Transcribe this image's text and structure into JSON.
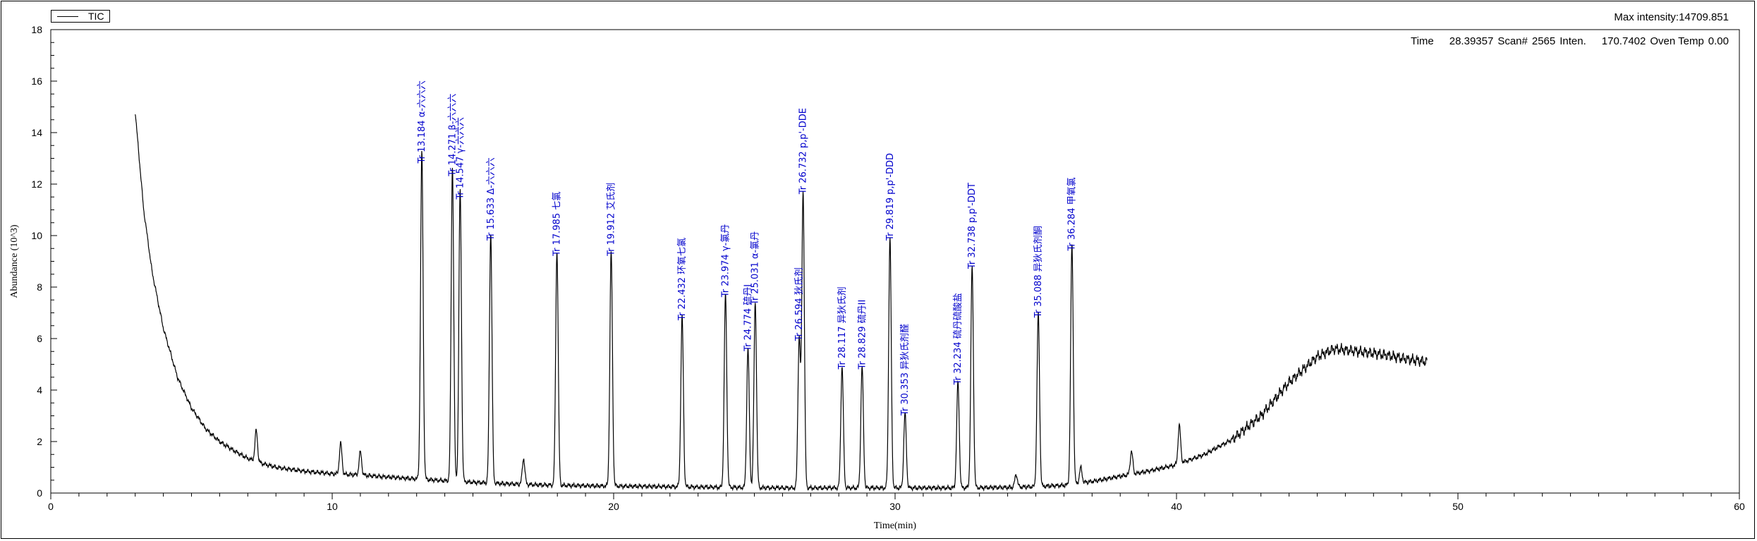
{
  "legend": {
    "label": "TIC"
  },
  "header": {
    "max_intensity": "Max intensity:14709.851",
    "time_label": "Time",
    "time_value": "28.39357",
    "scan_label": "Scan#",
    "scan_value": "2565",
    "inten_label": "Inten.",
    "inten_value": "170.7402",
    "oven_label": "Oven Temp",
    "oven_value": "0.00"
  },
  "chart_data": {
    "type": "line",
    "xlabel": "Time(min)",
    "ylabel": "Abundance (10^3)",
    "xlim": [
      0,
      60
    ],
    "ylim": [
      0,
      18
    ],
    "x_ticks": [
      0,
      10,
      20,
      30,
      40,
      50,
      60
    ],
    "y_ticks": [
      0,
      2,
      4,
      6,
      8,
      10,
      12,
      14,
      16,
      18
    ],
    "series": [
      {
        "name": "TIC",
        "color": "#000000",
        "baseline": [
          [
            3.0,
            14.8
          ],
          [
            3.3,
            11.0
          ],
          [
            3.6,
            8.6
          ],
          [
            4.0,
            6.4
          ],
          [
            4.5,
            4.5
          ],
          [
            5.0,
            3.3
          ],
          [
            5.5,
            2.5
          ],
          [
            6.0,
            2.0
          ],
          [
            6.5,
            1.65
          ],
          [
            7.0,
            1.35
          ],
          [
            7.5,
            1.15
          ],
          [
            8.0,
            1.0
          ],
          [
            9.0,
            0.85
          ],
          [
            10.0,
            0.75
          ],
          [
            11.0,
            0.7
          ],
          [
            12.0,
            0.62
          ],
          [
            13.0,
            0.55
          ],
          [
            14.0,
            0.48
          ],
          [
            15.0,
            0.42
          ],
          [
            16.0,
            0.37
          ],
          [
            17.0,
            0.33
          ],
          [
            18.0,
            0.3
          ],
          [
            20.0,
            0.27
          ],
          [
            22.0,
            0.25
          ],
          [
            24.0,
            0.22
          ],
          [
            26.0,
            0.2
          ],
          [
            28.0,
            0.2
          ],
          [
            30.0,
            0.2
          ],
          [
            32.0,
            0.2
          ],
          [
            34.0,
            0.22
          ],
          [
            35.0,
            0.25
          ],
          [
            36.0,
            0.3
          ],
          [
            37.0,
            0.45
          ],
          [
            38.0,
            0.65
          ],
          [
            39.0,
            0.85
          ],
          [
            40.0,
            1.1
          ],
          [
            41.0,
            1.5
          ],
          [
            42.0,
            2.1
          ],
          [
            43.0,
            3.0
          ],
          [
            44.0,
            4.3
          ],
          [
            45.0,
            5.3
          ],
          [
            45.6,
            5.6
          ],
          [
            46.5,
            5.5
          ],
          [
            47.5,
            5.35
          ],
          [
            48.2,
            5.2
          ],
          [
            48.9,
            5.1
          ]
        ],
        "peaks": [
          {
            "rt": 10.3,
            "height": 1.2
          },
          {
            "rt": 11.0,
            "height": 0.9
          },
          {
            "rt": 7.3,
            "height": 1.2
          },
          {
            "rt": 13.184,
            "height": 12.7
          },
          {
            "rt": 14.271,
            "height": 12.2
          },
          {
            "rt": 14.547,
            "height": 11.3
          },
          {
            "rt": 15.633,
            "height": 9.7
          },
          {
            "rt": 16.8,
            "height": 1.0
          },
          {
            "rt": 17.985,
            "height": 9.1
          },
          {
            "rt": 19.912,
            "height": 9.1
          },
          {
            "rt": 22.432,
            "height": 6.6
          },
          {
            "rt": 23.974,
            "height": 7.5
          },
          {
            "rt": 24.774,
            "height": 5.4
          },
          {
            "rt": 25.031,
            "height": 7.2
          },
          {
            "rt": 26.594,
            "height": 5.8
          },
          {
            "rt": 26.732,
            "height": 11.5
          },
          {
            "rt": 28.117,
            "height": 4.7
          },
          {
            "rt": 28.829,
            "height": 4.7
          },
          {
            "rt": 29.819,
            "height": 9.7
          },
          {
            "rt": 30.353,
            "height": 2.9
          },
          {
            "rt": 32.234,
            "height": 4.1
          },
          {
            "rt": 32.738,
            "height": 8.6
          },
          {
            "rt": 34.3,
            "height": 0.5
          },
          {
            "rt": 35.088,
            "height": 6.7
          },
          {
            "rt": 36.284,
            "height": 9.3
          },
          {
            "rt": 36.6,
            "height": 0.6
          },
          {
            "rt": 38.4,
            "height": 0.9
          },
          {
            "rt": 40.1,
            "height": 1.5
          }
        ]
      }
    ],
    "annotations": [
      {
        "label": "Tr 13.184  α-六六六",
        "x": 13.184,
        "y": 12.7
      },
      {
        "label": "Tr 14.271  β-六六六",
        "x": 14.271,
        "y": 12.2
      },
      {
        "label": "Tr 14.547  γ-六六六",
        "x": 14.547,
        "y": 11.3
      },
      {
        "label": "Tr 15.633  Δ-六六六",
        "x": 15.633,
        "y": 9.7
      },
      {
        "label": "Tr 17.985  七氯",
        "x": 17.985,
        "y": 9.1
      },
      {
        "label": "Tr 19.912  艾氏剂",
        "x": 19.912,
        "y": 9.1
      },
      {
        "label": "Tr 22.432  环氧七氯",
        "x": 22.432,
        "y": 6.6
      },
      {
        "label": "Tr 23.974  γ-氯丹",
        "x": 23.974,
        "y": 7.5
      },
      {
        "label": "Tr 24.774  硫丹I",
        "x": 24.774,
        "y": 5.4
      },
      {
        "label": "Tr 25.031  α-氯丹",
        "x": 25.031,
        "y": 7.2
      },
      {
        "label": "Tr 26.594  狄氏剂",
        "x": 26.594,
        "y": 5.8
      },
      {
        "label": "Tr 26.732  p,p'-DDE",
        "x": 26.732,
        "y": 11.5
      },
      {
        "label": "Tr 28.117  异狄氏剂",
        "x": 28.117,
        "y": 4.7
      },
      {
        "label": "Tr 28.829  硫丹II",
        "x": 28.829,
        "y": 4.7
      },
      {
        "label": "Tr 29.819  p,p'-DDD",
        "x": 29.819,
        "y": 9.7
      },
      {
        "label": "Tr 30.353  异狄氏剂醛",
        "x": 30.353,
        "y": 2.9
      },
      {
        "label": "Tr 32.234  硫丹硫酸盐",
        "x": 32.234,
        "y": 4.1
      },
      {
        "label": "Tr 32.738  p,p'-DDT",
        "x": 32.738,
        "y": 8.6
      },
      {
        "label": "Tr 35.088  异狄氏剂酮",
        "x": 35.088,
        "y": 6.7
      },
      {
        "label": "Tr 36.284  甲氧氯",
        "x": 36.284,
        "y": 9.3
      }
    ]
  }
}
